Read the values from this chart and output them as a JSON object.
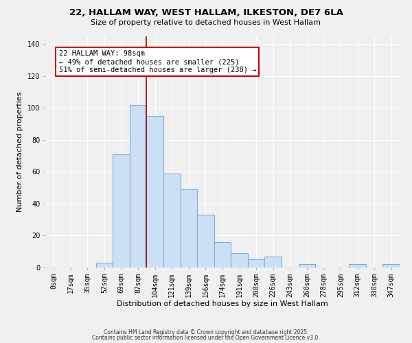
{
  "title1": "22, HALLAM WAY, WEST HALLAM, ILKESTON, DE7 6LA",
  "title2": "Size of property relative to detached houses in West Hallam",
  "xlabel": "Distribution of detached houses by size in West Hallam",
  "ylabel": "Number of detached properties",
  "bar_labels": [
    "0sqm",
    "17sqm",
    "35sqm",
    "52sqm",
    "69sqm",
    "87sqm",
    "104sqm",
    "121sqm",
    "139sqm",
    "156sqm",
    "174sqm",
    "191sqm",
    "208sqm",
    "226sqm",
    "243sqm",
    "260sqm",
    "278sqm",
    "295sqm",
    "312sqm",
    "330sqm",
    "347sqm"
  ],
  "bar_values": [
    0,
    0,
    0,
    3,
    71,
    102,
    95,
    59,
    49,
    33,
    16,
    9,
    5,
    7,
    0,
    2,
    0,
    0,
    2,
    0,
    2
  ],
  "bar_color": "#cce0f5",
  "bar_edge_color": "#7ab0d8",
  "ylim": [
    0,
    145
  ],
  "yticks": [
    0,
    20,
    40,
    60,
    80,
    100,
    120,
    140
  ],
  "vline_x": 5.5,
  "vline_color": "#990000",
  "annotation_label": "22 HALLAM WAY: 98sqm",
  "annotation_line2": "← 49% of detached houses are smaller (225)",
  "annotation_line3": "51% of semi-detached houses are larger (238) →",
  "annotation_box_fc": "#ffffff",
  "annotation_box_ec": "#cc0000",
  "footer1": "Contains HM Land Registry data © Crown copyright and database right 2025.",
  "footer2": "Contains public sector information licensed under the Open Government Licence v3.0.",
  "bg_color": "#f0f0f0",
  "grid_color": "#ffffff",
  "title1_fontsize": 9.5,
  "title2_fontsize": 8,
  "axis_label_fontsize": 8,
  "tick_fontsize": 7,
  "annot_fontsize": 7.5,
  "footer_fontsize": 5.5
}
